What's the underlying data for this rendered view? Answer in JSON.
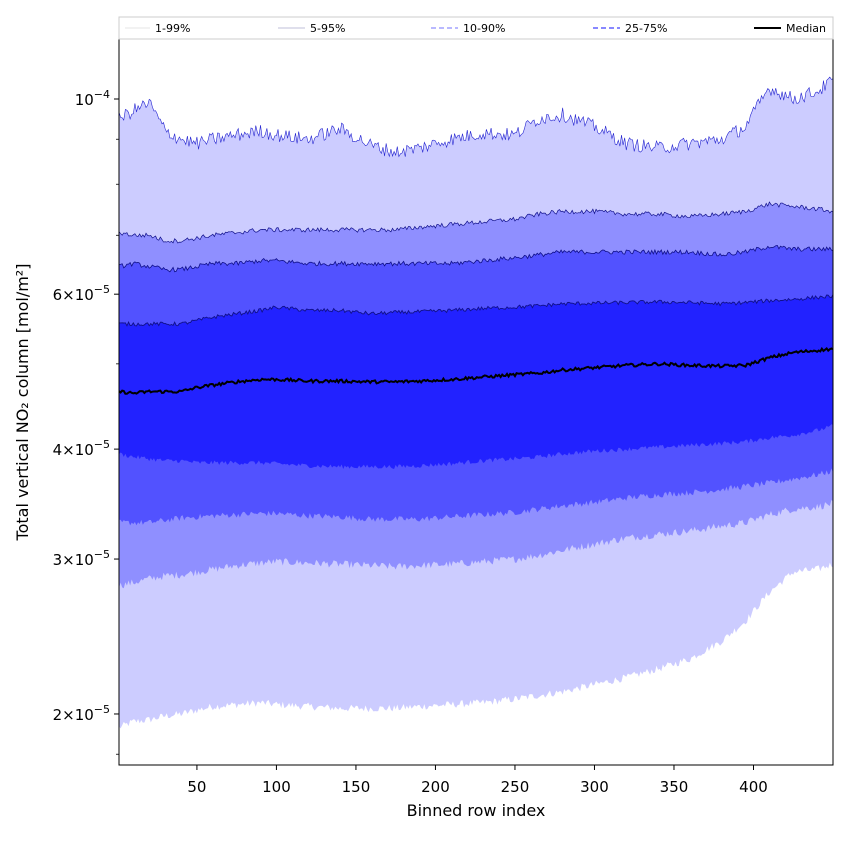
{
  "chart_data": {
    "type": "area",
    "title": "",
    "xlabel": "Binned row index",
    "ylabel": "Total vertical NO₂ column [mol/m²]",
    "xlim": [
      1,
      450
    ],
    "ylim": [
      1.75e-05,
      0.000117
    ],
    "yscale": "log",
    "x_ticks": [
      50,
      100,
      150,
      200,
      250,
      300,
      350,
      400
    ],
    "x_tick_labels": [
      "50",
      "100",
      "150",
      "200",
      "250",
      "300",
      "350",
      "400"
    ],
    "y_ticks": [
      {
        "value": 2e-05,
        "mantissa": "2",
        "base": "10",
        "exp": "−5"
      },
      {
        "value": 3e-05,
        "mantissa": "3",
        "base": "10",
        "exp": "−5"
      },
      {
        "value": 4e-05,
        "mantissa": "4",
        "base": "10",
        "exp": "−5"
      },
      {
        "value": 6e-05,
        "mantissa": "6",
        "base": "10",
        "exp": "−5"
      },
      {
        "value": 0.0001,
        "mantissa": "",
        "base": "10",
        "exp": "−4"
      }
    ],
    "legend_position": "top (above plot)",
    "legend": [
      {
        "label": "1-99%",
        "style": "fill-band"
      },
      {
        "label": "5-95%",
        "style": "fill-band"
      },
      {
        "label": "10-90%",
        "style": "dashed"
      },
      {
        "label": "25-75%",
        "style": "dashed"
      },
      {
        "label": "Median",
        "style": "solid"
      }
    ],
    "x_knots": [
      1,
      10,
      20,
      30,
      40,
      50,
      60,
      75,
      90,
      100,
      120,
      140,
      160,
      175,
      190,
      210,
      230,
      250,
      265,
      280,
      300,
      320,
      340,
      360,
      380,
      395,
      410,
      425,
      440,
      450
    ],
    "series": [
      {
        "name": "p99",
        "values": [
          9.5e-05,
          9.7e-05,
          9.9e-05,
          9.2e-05,
          9e-05,
          8.9e-05,
          9e-05,
          9.1e-05,
          9.2e-05,
          9.1e-05,
          9e-05,
          9.25e-05,
          8.85e-05,
          8.7e-05,
          8.8e-05,
          9e-05,
          9.15e-05,
          9.1e-05,
          9.5e-05,
          9.6e-05,
          9.3e-05,
          8.9e-05,
          8.8e-05,
          8.9e-05,
          9e-05,
          9.3e-05,
          0.000103,
          0.0001,
          0.000102,
          0.000105
        ]
      },
      {
        "name": "p95",
        "values": [
          7.05e-05,
          7e-05,
          7e-05,
          6.9e-05,
          6.9e-05,
          6.95e-05,
          7e-05,
          7.05e-05,
          7.1e-05,
          7.1e-05,
          7.1e-05,
          7.1e-05,
          7.1e-05,
          7.1e-05,
          7.15e-05,
          7.2e-05,
          7.25e-05,
          7.3e-05,
          7.4e-05,
          7.45e-05,
          7.45e-05,
          7.4e-05,
          7.4e-05,
          7.35e-05,
          7.4e-05,
          7.45e-05,
          7.6e-05,
          7.55e-05,
          7.5e-05,
          7.45e-05
        ]
      },
      {
        "name": "p90",
        "values": [
          6.45e-05,
          6.5e-05,
          6.45e-05,
          6.4e-05,
          6.4e-05,
          6.45e-05,
          6.5e-05,
          6.5e-05,
          6.55e-05,
          6.55e-05,
          6.5e-05,
          6.5e-05,
          6.5e-05,
          6.5e-05,
          6.5e-05,
          6.5e-05,
          6.55e-05,
          6.6e-05,
          6.65e-05,
          6.7e-05,
          6.7e-05,
          6.7e-05,
          6.7e-05,
          6.7e-05,
          6.65e-05,
          6.7e-05,
          6.8e-05,
          6.75e-05,
          6.75e-05,
          6.75e-05
        ]
      },
      {
        "name": "p75",
        "values": [
          5.55e-05,
          5.55e-05,
          5.55e-05,
          5.55e-05,
          5.55e-05,
          5.6e-05,
          5.65e-05,
          5.7e-05,
          5.75e-05,
          5.8e-05,
          5.75e-05,
          5.75e-05,
          5.7e-05,
          5.72e-05,
          5.73e-05,
          5.75e-05,
          5.78e-05,
          5.8e-05,
          5.82e-05,
          5.85e-05,
          5.86e-05,
          5.87e-05,
          5.88e-05,
          5.87e-05,
          5.85e-05,
          5.87e-05,
          5.9e-05,
          5.92e-05,
          5.95e-05,
          5.97e-05
        ]
      },
      {
        "name": "Median",
        "values": [
          4.65e-05,
          4.63e-05,
          4.65e-05,
          4.65e-05,
          4.65e-05,
          4.7e-05,
          4.73e-05,
          4.77e-05,
          4.8e-05,
          4.8e-05,
          4.78e-05,
          4.78e-05,
          4.77e-05,
          4.77e-05,
          4.78e-05,
          4.8e-05,
          4.83e-05,
          4.86e-05,
          4.88e-05,
          4.92e-05,
          4.95e-05,
          4.98e-05,
          5e-05,
          4.98e-05,
          4.97e-05,
          4.98e-05,
          5.08e-05,
          5.15e-05,
          5.18e-05,
          5.2e-05
        ]
      },
      {
        "name": "p25",
        "values": [
          3.95e-05,
          3.92e-05,
          3.9e-05,
          3.88e-05,
          3.88e-05,
          3.86e-05,
          3.86e-05,
          3.86e-05,
          3.86e-05,
          3.85e-05,
          3.83e-05,
          3.82e-05,
          3.82e-05,
          3.82e-05,
          3.83e-05,
          3.85e-05,
          3.88e-05,
          3.9e-05,
          3.92e-05,
          3.95e-05,
          3.98e-05,
          4e-05,
          4.02e-05,
          4.04e-05,
          4.06e-05,
          4.08e-05,
          4.12e-05,
          4.15e-05,
          4.2e-05,
          4.25e-05
        ]
      },
      {
        "name": "p10",
        "values": [
          3.3e-05,
          3.3e-05,
          3.3e-05,
          3.32e-05,
          3.34e-05,
          3.35e-05,
          3.36e-05,
          3.37e-05,
          3.38e-05,
          3.38e-05,
          3.36e-05,
          3.35e-05,
          3.33e-05,
          3.33e-05,
          3.33e-05,
          3.35e-05,
          3.37e-05,
          3.39e-05,
          3.42e-05,
          3.45e-05,
          3.48e-05,
          3.52e-05,
          3.55e-05,
          3.57e-05,
          3.6e-05,
          3.63e-05,
          3.66e-05,
          3.7e-05,
          3.74e-05,
          3.78e-05
        ]
      },
      {
        "name": "p5",
        "values": [
          2.8e-05,
          2.82e-05,
          2.85e-05,
          2.87e-05,
          2.88e-05,
          2.9e-05,
          2.92e-05,
          2.95e-05,
          2.97e-05,
          2.98e-05,
          2.97e-05,
          2.96e-05,
          2.95e-05,
          2.94e-05,
          2.95e-05,
          2.96e-05,
          2.98e-05,
          3e-05,
          3.03e-05,
          3.07e-05,
          3.12e-05,
          3.17e-05,
          3.2e-05,
          3.23e-05,
          3.27e-05,
          3.3e-05,
          3.37e-05,
          3.42e-05,
          3.44e-05,
          3.47e-05
        ]
      },
      {
        "name": "p1",
        "values": [
          1.93e-05,
          1.96e-05,
          1.97e-05,
          1.99e-05,
          2e-05,
          2.02e-05,
          2.04e-05,
          2.05e-05,
          2.06e-05,
          2.05e-05,
          2.04e-05,
          2.03e-05,
          2.03e-05,
          2.03e-05,
          2.04e-05,
          2.05e-05,
          2.06e-05,
          2.08e-05,
          2.1e-05,
          2.12e-05,
          2.16e-05,
          2.2e-05,
          2.25e-05,
          2.31e-05,
          2.42e-05,
          2.55e-05,
          2.75e-05,
          2.9e-05,
          2.92e-05,
          2.96e-05
        ]
      }
    ],
    "band_colors": {
      "outer": "#ccccff",
      "p5_p10": "#8f8fff",
      "p10_p25": "#5252ff",
      "inner": "#2222ff",
      "median": "#000000",
      "edge": "#10108a"
    }
  }
}
